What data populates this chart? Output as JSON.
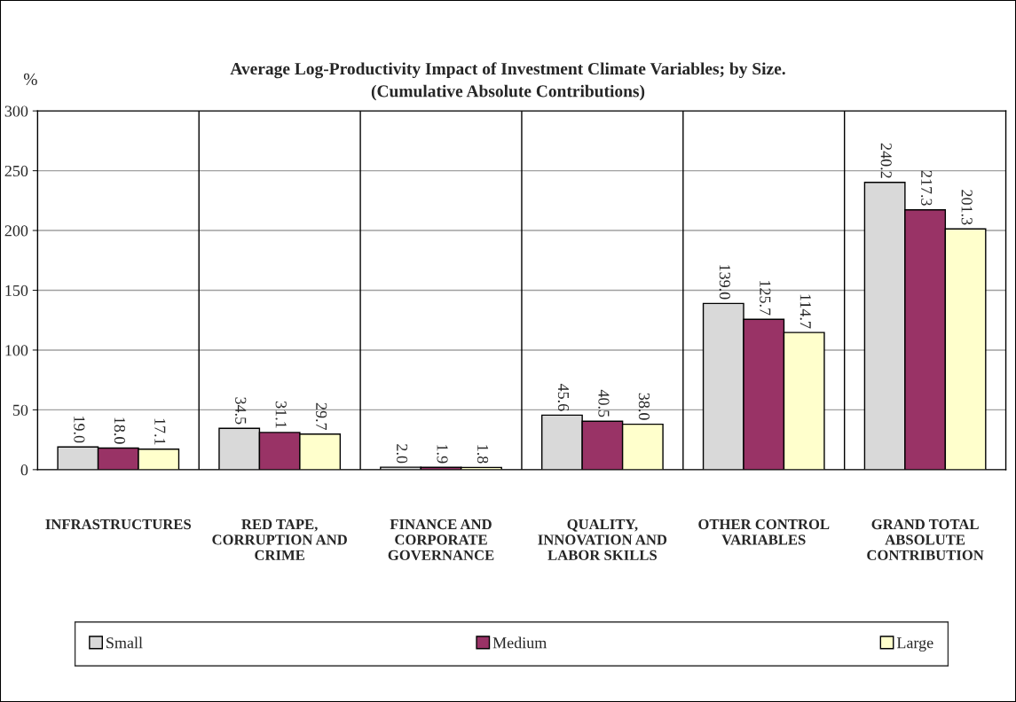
{
  "chart_data": {
    "type": "bar",
    "title": "Average Log-Productivity Impact of Investment Climate Variables; by Size.",
    "subtitle": "(Cumulative Absolute Contributions)",
    "ylabel": "%",
    "categories": [
      "INFRASTRUCTURES",
      "RED TAPE,\nCORRUPTION AND\nCRIME",
      "FINANCE AND\nCORPORATE\nGOVERNANCE",
      "QUALITY,\nINNOVATION AND\nLABOR SKILLS",
      "OTHER CONTROL\nVARIABLES",
      "GRAND TOTAL\nABSOLUTE\nCONTRIBUTION"
    ],
    "series": [
      {
        "name": "Small",
        "color": "#d9d9d9",
        "values": [
          19.0,
          34.5,
          2.0,
          45.6,
          139.0,
          240.2
        ],
        "value_labels": [
          "19.0",
          "34.5",
          "2.0",
          "45.6",
          "139.0",
          "240.2"
        ]
      },
      {
        "name": "Medium",
        "color": "#993366",
        "values": [
          18.0,
          31.1,
          1.9,
          40.5,
          125.7,
          217.3
        ],
        "value_labels": [
          "18.0",
          "31.1",
          "1.9",
          "40.5",
          "125.7",
          "217.3"
        ]
      },
      {
        "name": "Large",
        "color": "#ffffcc",
        "values": [
          17.1,
          29.7,
          1.8,
          38.0,
          114.7,
          201.3
        ],
        "value_labels": [
          "17.1",
          "29.7",
          "1.8",
          "38.0",
          "114.7",
          "201.3"
        ]
      }
    ],
    "ylim": [
      0,
      300
    ],
    "yticks": [
      0,
      50,
      100,
      150,
      200,
      250,
      300
    ],
    "grid": true,
    "legend": "bottom"
  }
}
